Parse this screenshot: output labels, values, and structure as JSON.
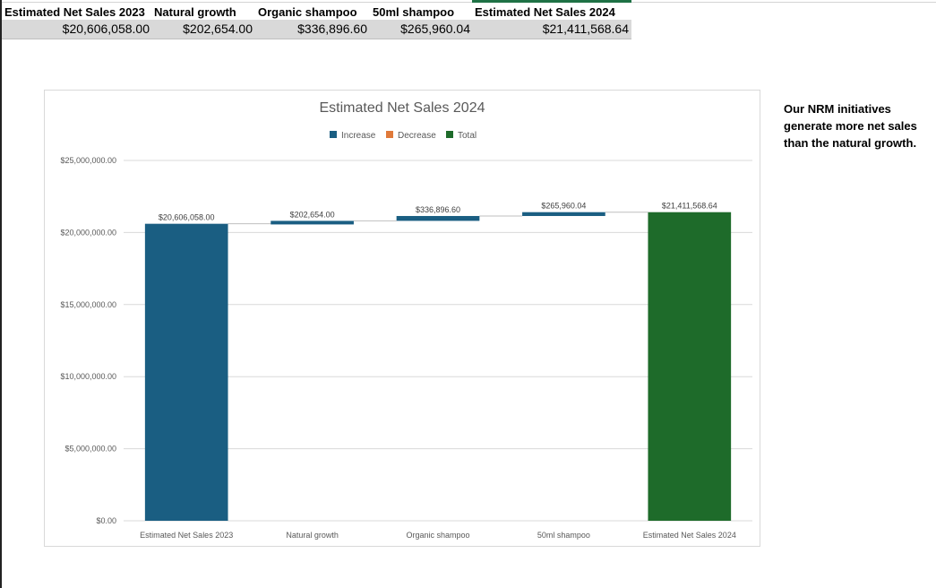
{
  "sheet": {
    "headers": [
      "Estimated Net Sales 2023",
      "Natural growth",
      "Organic shampoo",
      "50ml shampoo",
      "Estimated Net Sales 2024"
    ],
    "values": [
      "$20,606,058.00",
      "$202,654.00",
      "$336,896.60",
      "$265,960.04",
      "$21,411,568.64"
    ]
  },
  "note": "Our NRM initiatives generate more net sales than the natural growth.",
  "chart_data": {
    "type": "bar",
    "subtype": "waterfall",
    "title": "Estimated Net Sales 2024",
    "legend": [
      "Increase",
      "Decrease",
      "Total"
    ],
    "legend_position": "top",
    "colors": {
      "increase": "#1a5e82",
      "decrease": "#e07a3a",
      "total": "#1e6b2a"
    },
    "categories": [
      "Estimated Net Sales 2023",
      "Natural growth",
      "Organic shampoo",
      "50ml shampoo",
      "Estimated Net Sales 2024"
    ],
    "values": [
      20606058.0,
      202654.0,
      336896.6,
      265960.04,
      21411568.64
    ],
    "kinds": [
      "increase",
      "increase",
      "increase",
      "increase",
      "total"
    ],
    "data_labels": [
      "$20,606,058.00",
      "$202,654.00",
      "$336,896.60",
      "$265,960.04",
      "$21,411,568.64"
    ],
    "yticks": [
      "$0.00",
      "$5,000,000.00",
      "$10,000,000.00",
      "$15,000,000.00",
      "$20,000,000.00",
      "$25,000,000.00"
    ],
    "ylim": [
      0,
      25000000
    ],
    "grid": true
  }
}
